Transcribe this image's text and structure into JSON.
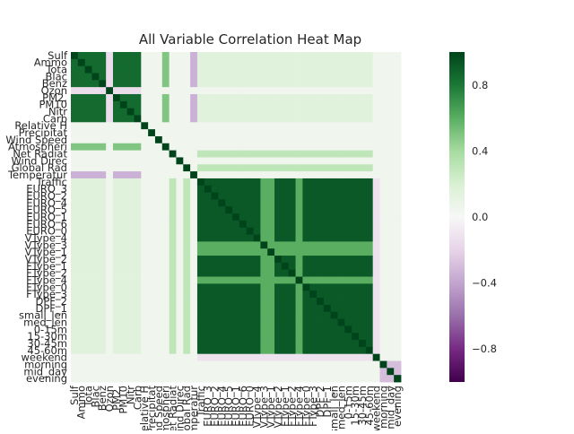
{
  "chart_data": {
    "type": "heatmap",
    "title": "All Variable Correlation Heat Map",
    "row_labels": [
      "Sulf",
      "Ammo",
      "Tota",
      "Blac",
      "Benz",
      "Ozon",
      "PM2.",
      "PM10",
      "Nitr",
      "Carb",
      "Relative H",
      "Precipitat",
      "Wind Speed",
      "Atmospheri",
      "Net Radiat",
      "Wind Direc",
      "Global Rad",
      "Temperatur",
      "Traffic",
      "EURO_3",
      "EURO_2",
      "EURO_4",
      "EURO_5",
      "EURO_1",
      "EURO_6",
      "EURO_0",
      "VType_4",
      "VType_3",
      "VType_1",
      "VType_2",
      "FType_1",
      "FType_2",
      "FType_4",
      "FType_0",
      "FType_3",
      "DPF_2",
      "DPF_1",
      "small_len",
      "med_len",
      "0-15m",
      "15-30m",
      "30-45m",
      "45-60m",
      "weekend",
      "morning",
      "mid_day",
      "evening"
    ],
    "col_labels": [
      "Sulf",
      "Ammo",
      "Tota",
      "Blac",
      "Benz",
      "Ozon",
      "PM2.",
      "PM10",
      "Nitr",
      "Carb",
      "Relative H",
      "Precipitat",
      "Wind Speed",
      "Atmospheri",
      "Net Radiat",
      "Wind Direc",
      "Global Rad",
      "Temperatur",
      "Traffic",
      "EURO_3",
      "EURO_2",
      "EURO_4",
      "EURO_5",
      "EURO_1",
      "EURO_6",
      "EURO_0",
      "VType_4",
      "VType_3",
      "VType_1",
      "VType_2",
      "FType_1",
      "FType_2",
      "FType_4",
      "FType_0",
      "FType_3",
      "DPF_2",
      "DPF_1",
      "small_len",
      "med_len",
      "0-15m",
      "15-30m",
      "30-45m",
      "45-60m",
      "weekend",
      "morning",
      "mid_day",
      "evening"
    ],
    "colorbar": {
      "cmap": "PRGn",
      "vmin": -1.0,
      "vmax": 1.0,
      "ticks": [
        -0.8,
        -0.4,
        0.0,
        0.4,
        0.8
      ],
      "tick_labels": [
        "−0.8",
        "−0.4",
        "0.0",
        "0.4",
        "0.8"
      ]
    },
    "value_structure": {
      "diagonal": 1.0,
      "pollution_group": [
        "Sulf",
        "Ammo",
        "Tota",
        "Blac",
        "Benz",
        "PM2.",
        "PM10",
        "Nitr",
        "Carb"
      ],
      "pollution_intra_corr": 0.85,
      "ozone_vs_pollution": -0.15,
      "atmospheric_vs_pollution": 0.5,
      "temperature_vs_pollution": -0.35,
      "traffic_group_intra_corr": 0.92,
      "weak_groups": [
        "VType_3",
        "VType_1",
        "FType_4"
      ],
      "weak_group_corr": 0.6,
      "radiation_vs_traffic": 0.3,
      "pollution_vs_traffic": 0.15,
      "weekend_vs_traffic": -0.12,
      "time_of_day_intra_corr": -0.3
    }
  }
}
